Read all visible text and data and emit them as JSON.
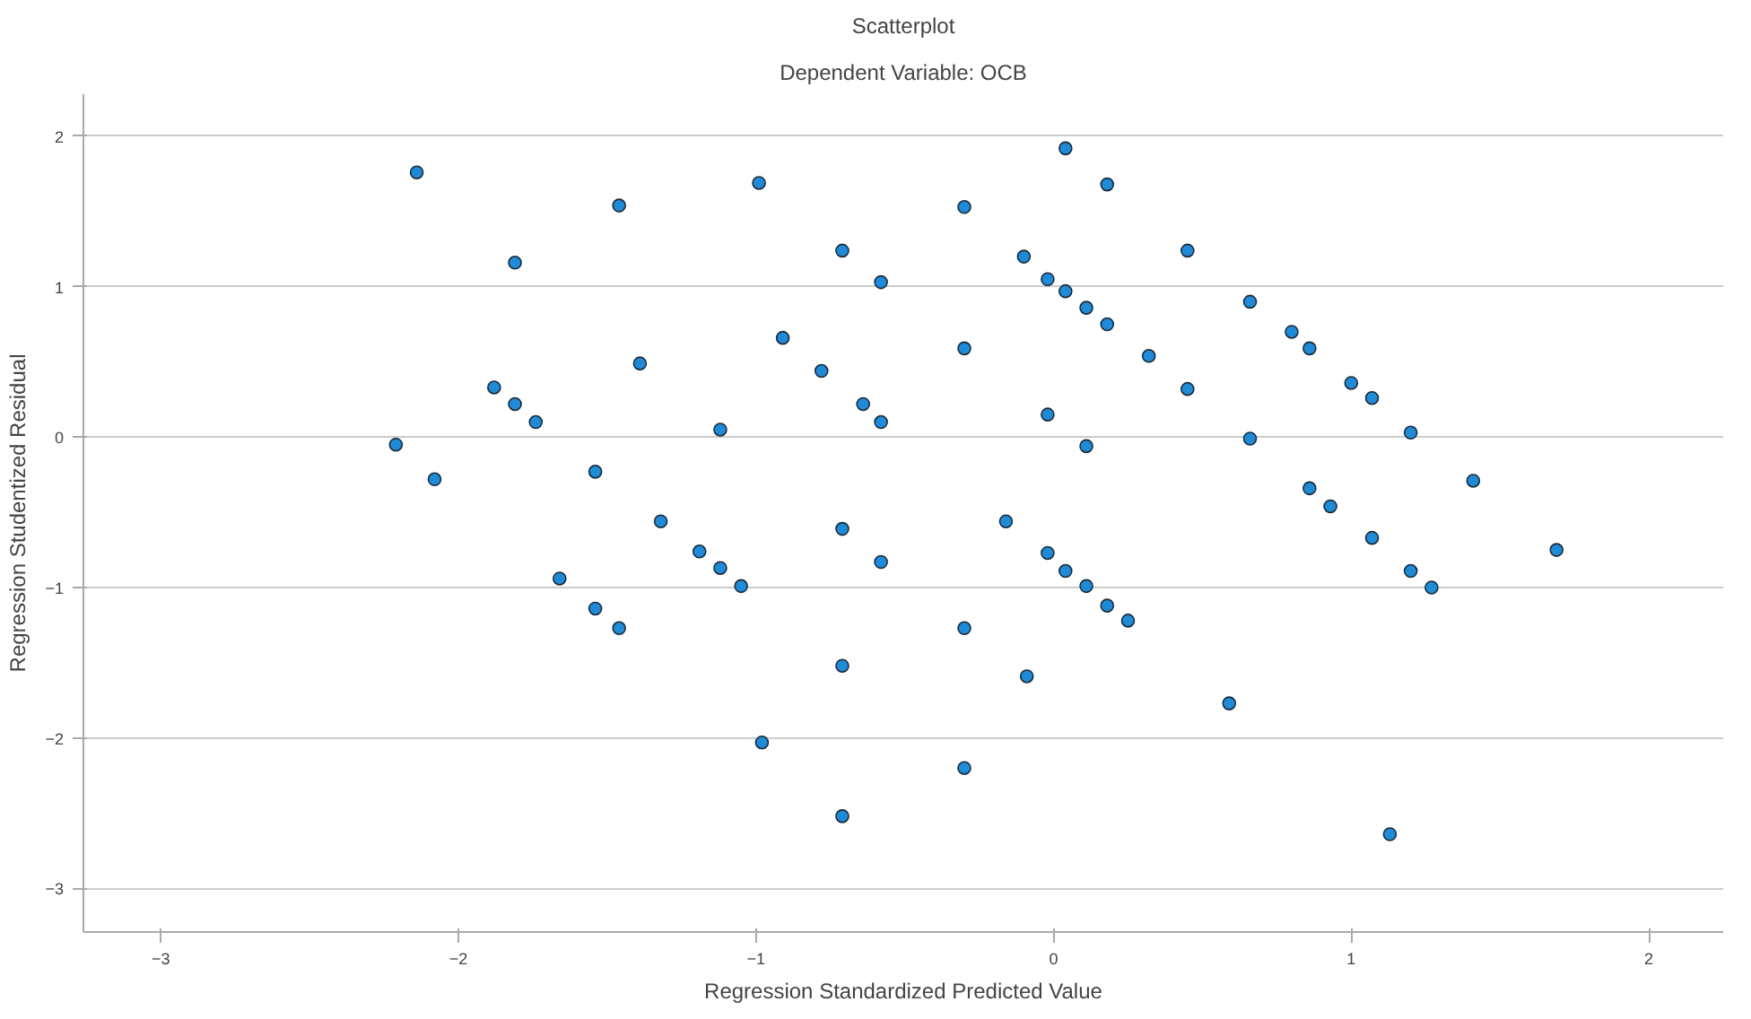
{
  "chart_data": {
    "type": "scatter",
    "title": "Scatterplot",
    "subtitle": "Dependent Variable: OCB",
    "xlabel": "Regression Standardized Predicted Value",
    "ylabel": "Regression Studentized Residual",
    "xlim": [
      -3.26,
      2.25
    ],
    "ylim": [
      -3.29,
      2.28
    ],
    "xticks": [
      -3,
      -2,
      -1,
      0,
      1,
      2
    ],
    "yticks": [
      -3,
      -2,
      -1,
      0,
      1,
      2
    ],
    "grid": "y",
    "marker": "circle",
    "series": [
      {
        "color": "#1f8ad6",
        "x": [
          -2.14,
          -1.46,
          -0.99,
          -0.71,
          -0.58,
          -1.81,
          -0.91,
          -1.39,
          -0.78,
          -1.88,
          -1.81,
          -1.74,
          -0.64,
          -0.58,
          -1.12,
          -2.21,
          -2.08,
          -1.54,
          -1.32,
          -0.71,
          -0.58,
          -1.66,
          -1.19,
          -1.12,
          -1.05,
          -1.54,
          -1.46,
          -0.71,
          -0.98,
          -0.71,
          -0.16,
          -0.02,
          0.04,
          0.11,
          0.18,
          0.25,
          -0.3,
          -0.09,
          0.59,
          -0.3,
          0.93,
          0.86,
          1.07,
          1.2,
          1.27,
          1.69,
          1.13,
          0.04,
          0.18,
          -0.3,
          -0.1,
          -0.02,
          0.04,
          0.11,
          0.18,
          0.32,
          0.45,
          0.66,
          0.8,
          0.86,
          1.0,
          1.07,
          1.2,
          1.41,
          -0.3,
          -0.02,
          0.11,
          0.45,
          0.66
        ],
        "values": [
          1.76,
          1.54,
          1.69,
          1.24,
          1.03,
          1.16,
          0.66,
          0.49,
          0.44,
          0.33,
          0.22,
          0.1,
          0.22,
          0.1,
          0.05,
          -0.05,
          -0.28,
          -0.23,
          -0.56,
          -0.61,
          -0.83,
          -0.94,
          -0.76,
          -0.87,
          -0.99,
          -1.14,
          -1.27,
          -1.52,
          -2.03,
          -2.52,
          -0.56,
          -0.77,
          -0.89,
          -0.99,
          -1.12,
          -1.22,
          -1.27,
          -1.59,
          -1.77,
          -2.2,
          -0.46,
          -0.34,
          -0.67,
          -0.89,
          -1.0,
          -0.75,
          -2.64,
          1.92,
          1.68,
          1.53,
          1.2,
          1.05,
          0.97,
          0.86,
          0.75,
          0.54,
          1.24,
          0.9,
          0.7,
          0.59,
          0.36,
          0.26,
          0.03,
          -0.29,
          0.59,
          0.15,
          -0.06,
          0.32,
          -0.01
        ]
      }
    ]
  }
}
